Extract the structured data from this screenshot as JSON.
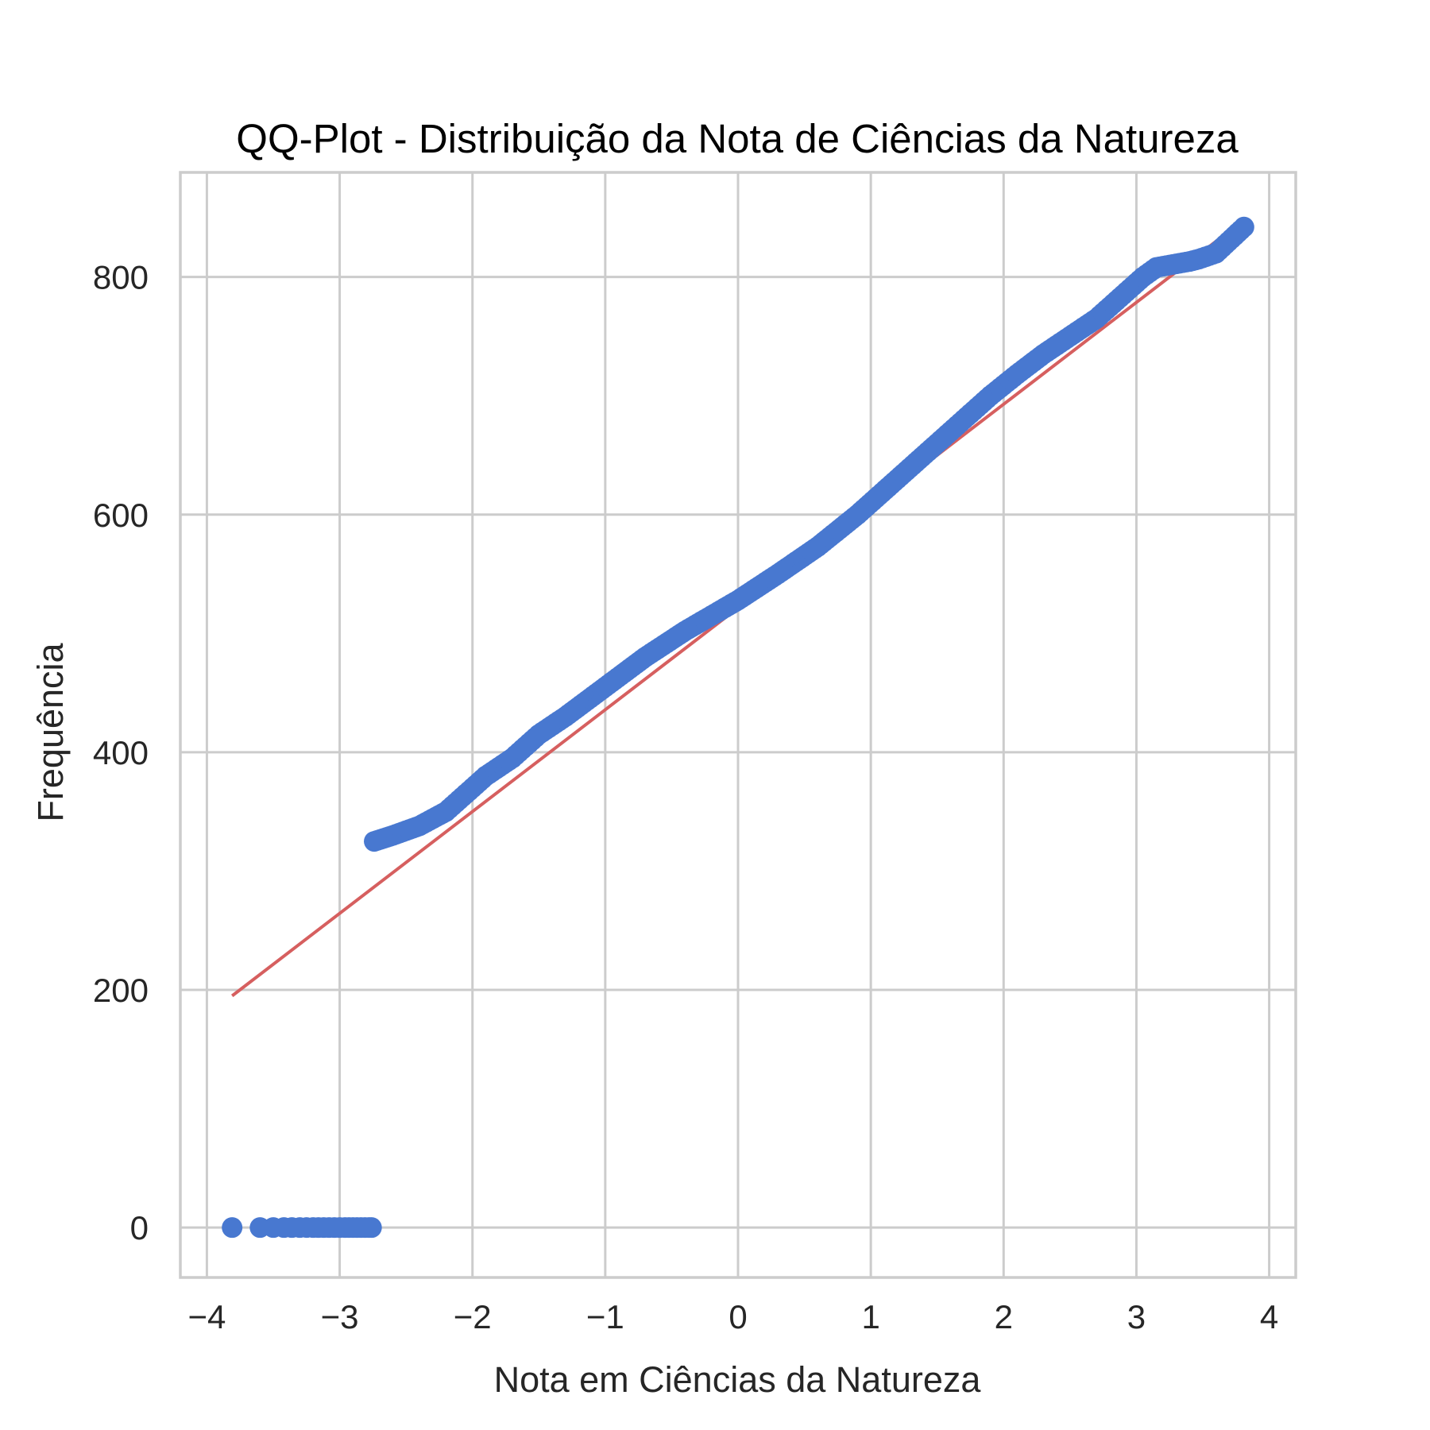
{
  "chart_data": {
    "type": "scatter",
    "title": "QQ-Plot - Distribuição da Nota de Ciências da Natureza",
    "xlabel": "Nota em Ciências da Natureza",
    "ylabel": "Frequência",
    "xlim": [
      -4.2,
      4.2
    ],
    "ylim": [
      -42,
      888
    ],
    "x_ticks": [
      -4,
      -3,
      -2,
      -1,
      0,
      1,
      2,
      3,
      4
    ],
    "x_tick_labels": [
      "−4",
      "−3",
      "−2",
      "−1",
      "0",
      "1",
      "2",
      "3",
      "4"
    ],
    "y_ticks": [
      0,
      200,
      400,
      600,
      800
    ],
    "y_tick_labels": [
      "0",
      "200",
      "400",
      "600",
      "800"
    ],
    "grid": true,
    "colors": {
      "points": "#4878d0",
      "fit_line": "#d65f5f",
      "grid": "#cccccc"
    },
    "series": [
      {
        "kind": "points",
        "x": [
          -3.81,
          -3.6,
          -3.5,
          -3.42,
          -3.36,
          -3.3,
          -3.25,
          -3.2,
          -3.16,
          -3.12,
          -3.08,
          -3.04,
          -3.0,
          -2.96,
          -2.93,
          -2.9,
          -2.87,
          -2.84,
          -2.81,
          -2.78,
          -2.76,
          -2.74,
          -2.6,
          -2.4,
          -2.2,
          -2.0,
          -1.9,
          -1.7,
          -1.5,
          -1.3,
          -1.0,
          -0.7,
          -0.4,
          -0.2,
          0.0,
          0.3,
          0.6,
          0.9,
          1.2,
          1.5,
          1.7,
          1.9,
          2.1,
          2.3,
          2.5,
          2.7,
          2.9,
          3.05,
          3.15,
          3.25,
          3.4,
          3.47,
          3.6,
          3.81
        ],
        "y": [
          0,
          0,
          0,
          0,
          0,
          0,
          0,
          0,
          0,
          0,
          0,
          0,
          0,
          0,
          0,
          0,
          0,
          0,
          0,
          0,
          0,
          325,
          330,
          338,
          350,
          370,
          380,
          395,
          415,
          430,
          455,
          480,
          502,
          515,
          528,
          550,
          573,
          600,
          630,
          660,
          680,
          700,
          718,
          735,
          750,
          765,
          785,
          800,
          808,
          810,
          813,
          815,
          820,
          842
        ]
      },
      {
        "kind": "line",
        "x": [
          -3.81,
          3.81
        ],
        "y": [
          195,
          848
        ]
      }
    ]
  }
}
